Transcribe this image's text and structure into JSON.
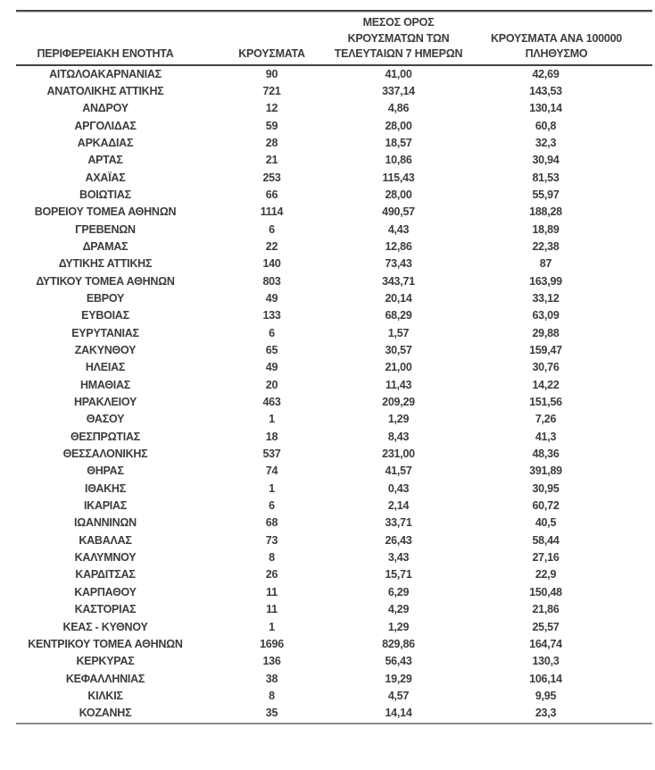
{
  "page": {
    "background": "#ffffff",
    "text_color": "#3c3c3c",
    "rule_dark": "#4a4a4a",
    "rule_light": "#bfbfbf",
    "rule_bottom": "#8a8a8a"
  },
  "table": {
    "columns": [
      {
        "key": "region",
        "label": "ΠΕΡΙΦΕΡΕΙΑΚΗ ΕΝΟΤΗΤΑ"
      },
      {
        "key": "cases",
        "label": "ΚΡΟΥΣΜΑΤΑ"
      },
      {
        "key": "avg7days",
        "label": "ΜΕΣΟΣ ΟΡΟΣ\nΚΡΟΥΣΜΑΤΩΝ ΤΩΝ\nΤΕΛΕΥΤΑΙΩΝ 7 ΗΜΕΡΩΝ"
      },
      {
        "key": "per100k",
        "label": "ΚΡΟΥΣΜΑΤΑ ΑΝΑ 100000\nΠΛΗΘΥΣΜΟ"
      }
    ],
    "rows": [
      [
        "ΑΙΤΩΛΟΑΚΑΡΝΑΝΙΑΣ",
        "90",
        "41,00",
        "42,69"
      ],
      [
        "ΑΝΑΤΟΛΙΚΗΣ ΑΤΤΙΚΗΣ",
        "721",
        "337,14",
        "143,53"
      ],
      [
        "ΑΝΔΡΟΥ",
        "12",
        "4,86",
        "130,14"
      ],
      [
        "ΑΡΓΟΛΙΔΑΣ",
        "59",
        "28,00",
        "60,8"
      ],
      [
        "ΑΡΚΑΔΙΑΣ",
        "28",
        "18,57",
        "32,3"
      ],
      [
        "ΑΡΤΑΣ",
        "21",
        "10,86",
        "30,94"
      ],
      [
        "ΑΧΑΪΑΣ",
        "253",
        "115,43",
        "81,53"
      ],
      [
        "ΒΟΙΩΤΙΑΣ",
        "66",
        "28,00",
        "55,97"
      ],
      [
        "ΒΟΡΕΙΟΥ ΤΟΜΕΑ ΑΘΗΝΩΝ",
        "1114",
        "490,57",
        "188,28"
      ],
      [
        "ΓΡΕΒΕΝΩΝ",
        "6",
        "4,43",
        "18,89"
      ],
      [
        "ΔΡΑΜΑΣ",
        "22",
        "12,86",
        "22,38"
      ],
      [
        "ΔΥΤΙΚΗΣ ΑΤΤΙΚΗΣ",
        "140",
        "73,43",
        "87"
      ],
      [
        "ΔΥΤΙΚΟΥ ΤΟΜΕΑ ΑΘΗΝΩΝ",
        "803",
        "343,71",
        "163,99"
      ],
      [
        "ΕΒΡΟΥ",
        "49",
        "20,14",
        "33,12"
      ],
      [
        "ΕΥΒΟΙΑΣ",
        "133",
        "68,29",
        "63,09"
      ],
      [
        "ΕΥΡΥΤΑΝΙΑΣ",
        "6",
        "1,57",
        "29,88"
      ],
      [
        "ΖΑΚΥΝΘΟΥ",
        "65",
        "30,57",
        "159,47"
      ],
      [
        "ΗΛΕΙΑΣ",
        "49",
        "21,00",
        "30,76"
      ],
      [
        "ΗΜΑΘΙΑΣ",
        "20",
        "11,43",
        "14,22"
      ],
      [
        "ΗΡΑΚΛΕΙΟΥ",
        "463",
        "209,29",
        "151,56"
      ],
      [
        "ΘΑΣΟΥ",
        "1",
        "1,29",
        "7,26"
      ],
      [
        "ΘΕΣΠΡΩΤΙΑΣ",
        "18",
        "8,43",
        "41,3"
      ],
      [
        "ΘΕΣΣΑΛΟΝΙΚΗΣ",
        "537",
        "231,00",
        "48,36"
      ],
      [
        "ΘΗΡΑΣ",
        "74",
        "41,57",
        "391,89"
      ],
      [
        "ΙΘΑΚΗΣ",
        "1",
        "0,43",
        "30,95"
      ],
      [
        "ΙΚΑΡΙΑΣ",
        "6",
        "2,14",
        "60,72"
      ],
      [
        "ΙΩΑΝΝΙΝΩΝ",
        "68",
        "33,71",
        "40,5"
      ],
      [
        "ΚΑΒΑΛΑΣ",
        "73",
        "26,43",
        "58,44"
      ],
      [
        "ΚΑΛΥΜΝΟΥ",
        "8",
        "3,43",
        "27,16"
      ],
      [
        "ΚΑΡΔΙΤΣΑΣ",
        "26",
        "15,71",
        "22,9"
      ],
      [
        "ΚΑΡΠΑΘΟΥ",
        "11",
        "6,29",
        "150,48"
      ],
      [
        "ΚΑΣΤΟΡΙΑΣ",
        "11",
        "4,29",
        "21,86"
      ],
      [
        "ΚΕΑΣ - ΚΥΘΝΟΥ",
        "1",
        "1,29",
        "25,57"
      ],
      [
        "ΚΕΝΤΡΙΚΟΥ ΤΟΜΕΑ ΑΘΗΝΩΝ",
        "1696",
        "829,86",
        "164,74"
      ],
      [
        "ΚΕΡΚΥΡΑΣ",
        "136",
        "56,43",
        "130,3"
      ],
      [
        "ΚΕΦΑΛΛΗΝΙΑΣ",
        "38",
        "19,29",
        "106,14"
      ],
      [
        "ΚΙΛΚΙΣ",
        "8",
        "4,57",
        "9,95"
      ],
      [
        "ΚΟΖΑΝΗΣ",
        "35",
        "14,14",
        "23,3"
      ]
    ]
  }
}
